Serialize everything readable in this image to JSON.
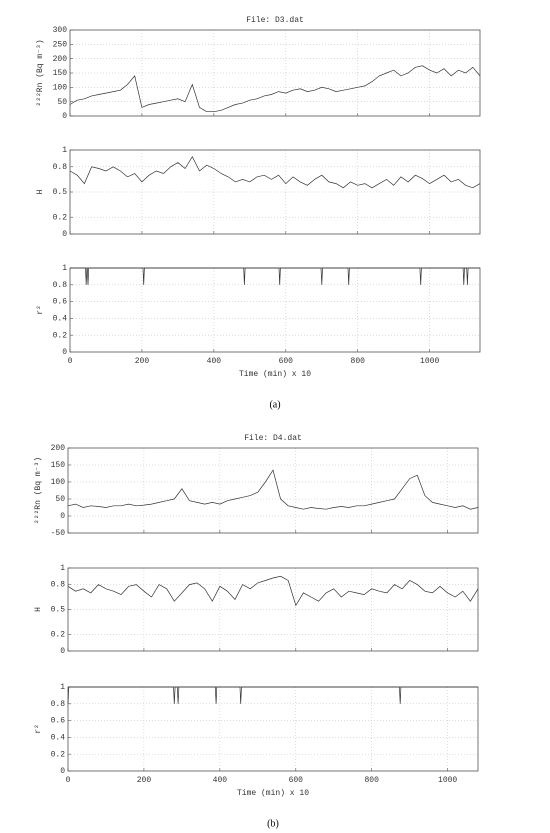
{
  "chart_data": [
    {
      "type": "line",
      "title": "File: D3.dat",
      "ylabel": "²²²Rn (Bq m⁻³)",
      "x": [
        0,
        20,
        40,
        60,
        80,
        100,
        120,
        140,
        160,
        180,
        200,
        220,
        240,
        260,
        280,
        300,
        320,
        340,
        360,
        380,
        400,
        420,
        440,
        460,
        480,
        500,
        520,
        540,
        560,
        580,
        600,
        620,
        640,
        660,
        680,
        700,
        720,
        740,
        760,
        780,
        800,
        820,
        840,
        860,
        880,
        900,
        920,
        940,
        960,
        980,
        1000,
        1020,
        1040,
        1060,
        1080,
        1100,
        1120,
        1140
      ],
      "values": [
        40,
        55,
        60,
        70,
        75,
        80,
        85,
        90,
        110,
        140,
        30,
        40,
        45,
        50,
        55,
        60,
        50,
        110,
        30,
        15,
        15,
        20,
        30,
        40,
        45,
        55,
        60,
        70,
        75,
        85,
        80,
        90,
        95,
        85,
        90,
        100,
        95,
        85,
        90,
        95,
        100,
        105,
        120,
        140,
        150,
        160,
        140,
        150,
        170,
        175,
        160,
        150,
        165,
        140,
        160,
        150,
        170,
        140
      ],
      "xlim": [
        0,
        1140
      ],
      "ylim": [
        0,
        300
      ],
      "xticks": [
        0,
        200,
        400,
        600,
        800,
        1000
      ],
      "yticks": [
        0,
        50,
        100,
        150,
        200,
        250,
        300
      ],
      "grid": true
    },
    {
      "type": "line",
      "ylabel": "H",
      "x": [
        0,
        20,
        40,
        60,
        80,
        100,
        120,
        140,
        160,
        180,
        200,
        220,
        240,
        260,
        280,
        300,
        320,
        340,
        360,
        380,
        400,
        420,
        440,
        460,
        480,
        500,
        520,
        540,
        560,
        580,
        600,
        620,
        640,
        660,
        680,
        700,
        720,
        740,
        760,
        780,
        800,
        820,
        840,
        860,
        880,
        900,
        920,
        940,
        960,
        980,
        1000,
        1020,
        1040,
        1060,
        1080,
        1100,
        1120,
        1140
      ],
      "values": [
        0.75,
        0.7,
        0.6,
        0.8,
        0.78,
        0.75,
        0.8,
        0.75,
        0.68,
        0.72,
        0.62,
        0.7,
        0.75,
        0.72,
        0.8,
        0.85,
        0.78,
        0.92,
        0.75,
        0.82,
        0.78,
        0.72,
        0.68,
        0.62,
        0.65,
        0.62,
        0.68,
        0.7,
        0.65,
        0.7,
        0.6,
        0.68,
        0.62,
        0.58,
        0.65,
        0.7,
        0.62,
        0.6,
        0.55,
        0.62,
        0.58,
        0.6,
        0.55,
        0.6,
        0.65,
        0.58,
        0.68,
        0.62,
        0.7,
        0.66,
        0.6,
        0.65,
        0.7,
        0.62,
        0.65,
        0.58,
        0.55,
        0.6
      ],
      "xlim": [
        0,
        1140
      ],
      "ylim": [
        0,
        1
      ],
      "xticks": [
        0,
        200,
        400,
        600,
        800,
        1000
      ],
      "yticks": [
        0,
        0.2,
        0.5,
        0.8,
        1
      ],
      "grid": true
    },
    {
      "type": "line",
      "ylabel": "r²",
      "xlabel": "Time (min) x 10",
      "caption": "(a)",
      "x": [
        0,
        43,
        45,
        47,
        48,
        50,
        52,
        203,
        205,
        207,
        483,
        485,
        487,
        581,
        583,
        585,
        698,
        700,
        702,
        773,
        775,
        777,
        973,
        975,
        977,
        1093,
        1095,
        1097,
        1103,
        1105,
        1107,
        1140
      ],
      "values": [
        1,
        1,
        0.8,
        1,
        1,
        0.8,
        1,
        1,
        0.8,
        1,
        1,
        0.8,
        1,
        1,
        0.8,
        1,
        1,
        0.8,
        1,
        1,
        0.8,
        1,
        1,
        0.8,
        1,
        1,
        0.8,
        1,
        1,
        0.8,
        1,
        1
      ],
      "xlim": [
        0,
        1140
      ],
      "ylim": [
        0,
        1
      ],
      "xticks": [
        0,
        200,
        400,
        600,
        800,
        1000
      ],
      "yticks": [
        0,
        0.2,
        0.4,
        0.6,
        0.8,
        1
      ],
      "grid": true
    },
    {
      "type": "line",
      "title": "File: D4.dat",
      "ylabel": "²²²Rn (Bq m⁻³)",
      "x": [
        0,
        20,
        40,
        60,
        80,
        100,
        120,
        140,
        160,
        180,
        200,
        220,
        240,
        260,
        280,
        300,
        320,
        340,
        360,
        380,
        400,
        420,
        440,
        460,
        480,
        500,
        520,
        540,
        560,
        580,
        600,
        620,
        640,
        660,
        680,
        700,
        720,
        740,
        760,
        780,
        800,
        820,
        840,
        860,
        880,
        900,
        920,
        940,
        960,
        980,
        1000,
        1020,
        1040,
        1060,
        1080
      ],
      "values": [
        30,
        35,
        25,
        30,
        28,
        25,
        30,
        30,
        35,
        30,
        32,
        35,
        40,
        45,
        50,
        80,
        45,
        40,
        35,
        40,
        35,
        45,
        50,
        55,
        60,
        70,
        100,
        135,
        50,
        30,
        25,
        20,
        25,
        22,
        20,
        25,
        28,
        25,
        30,
        30,
        35,
        40,
        45,
        50,
        80,
        110,
        120,
        60,
        40,
        35,
        30,
        25,
        30,
        20,
        25
      ],
      "xlim": [
        0,
        1080
      ],
      "ylim": [
        -50,
        200
      ],
      "xticks": [
        0,
        200,
        400,
        600,
        800,
        1000
      ],
      "yticks": [
        -50,
        0,
        50,
        100,
        150,
        200
      ],
      "grid": true
    },
    {
      "type": "line",
      "ylabel": "H",
      "x": [
        0,
        20,
        40,
        60,
        80,
        100,
        120,
        140,
        160,
        180,
        200,
        220,
        240,
        260,
        280,
        300,
        320,
        340,
        360,
        380,
        400,
        420,
        440,
        460,
        480,
        500,
        520,
        540,
        560,
        580,
        600,
        620,
        640,
        660,
        680,
        700,
        720,
        740,
        760,
        780,
        800,
        820,
        840,
        860,
        880,
        900,
        920,
        940,
        960,
        980,
        1000,
        1020,
        1040,
        1060,
        1080
      ],
      "values": [
        0.78,
        0.72,
        0.75,
        0.7,
        0.8,
        0.75,
        0.72,
        0.68,
        0.78,
        0.8,
        0.72,
        0.65,
        0.8,
        0.75,
        0.6,
        0.7,
        0.8,
        0.82,
        0.75,
        0.6,
        0.78,
        0.72,
        0.62,
        0.8,
        0.75,
        0.82,
        0.85,
        0.88,
        0.9,
        0.85,
        0.55,
        0.7,
        0.65,
        0.6,
        0.7,
        0.75,
        0.65,
        0.72,
        0.7,
        0.68,
        0.75,
        0.72,
        0.7,
        0.8,
        0.75,
        0.85,
        0.8,
        0.72,
        0.7,
        0.78,
        0.7,
        0.65,
        0.72,
        0.6,
        0.75
      ],
      "xlim": [
        0,
        1080
      ],
      "ylim": [
        0,
        1
      ],
      "xticks": [
        0,
        200,
        400,
        600,
        800,
        1000
      ],
      "yticks": [
        0,
        0.2,
        0.5,
        0.8,
        1
      ],
      "grid": true
    },
    {
      "type": "line",
      "ylabel": "r²",
      "xlabel": "Time (min) x 10",
      "caption": "(b)",
      "x": [
        0,
        2,
        5,
        278,
        280,
        282,
        288,
        290,
        292,
        388,
        390,
        392,
        453,
        455,
        457,
        873,
        875,
        877,
        1080
      ],
      "values": [
        0.8,
        1,
        1,
        1,
        0.8,
        1,
        1,
        0.8,
        1,
        1,
        0.8,
        1,
        1,
        0.8,
        1,
        1,
        0.8,
        1,
        1
      ],
      "xlim": [
        0,
        1080
      ],
      "ylim": [
        0,
        1
      ],
      "xticks": [
        0,
        200,
        400,
        600,
        800,
        1000
      ],
      "yticks": [
        0,
        0.2,
        0.4,
        0.6,
        0.8,
        1
      ],
      "grid": true
    }
  ]
}
